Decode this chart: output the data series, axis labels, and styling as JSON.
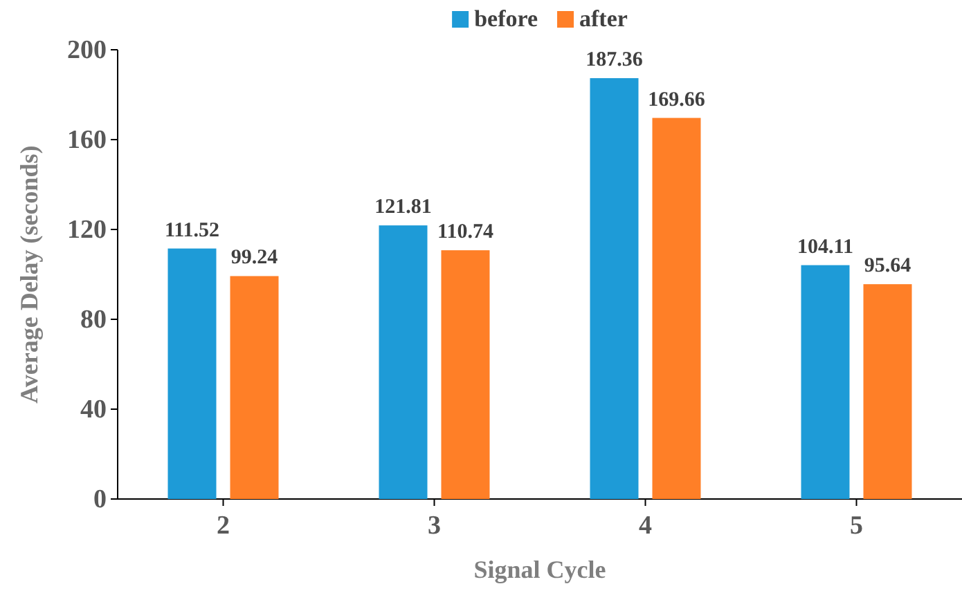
{
  "chart_data": {
    "type": "bar",
    "xlabel": "Signal Cycle",
    "ylabel": "Average Delay (seconds)",
    "categories": [
      "2",
      "3",
      "4",
      "5"
    ],
    "series": [
      {
        "name": "before",
        "color": "#1e9bd7",
        "values": [
          111.52,
          121.81,
          187.36,
          104.11
        ]
      },
      {
        "name": "after",
        "color": "#ff7f27",
        "values": [
          99.24,
          110.74,
          169.66,
          95.64
        ]
      }
    ],
    "ylim": [
      0,
      200
    ],
    "yticks": [
      0,
      40,
      80,
      120,
      160,
      200
    ],
    "data_labels": true,
    "legend": "top",
    "grid": false
  }
}
